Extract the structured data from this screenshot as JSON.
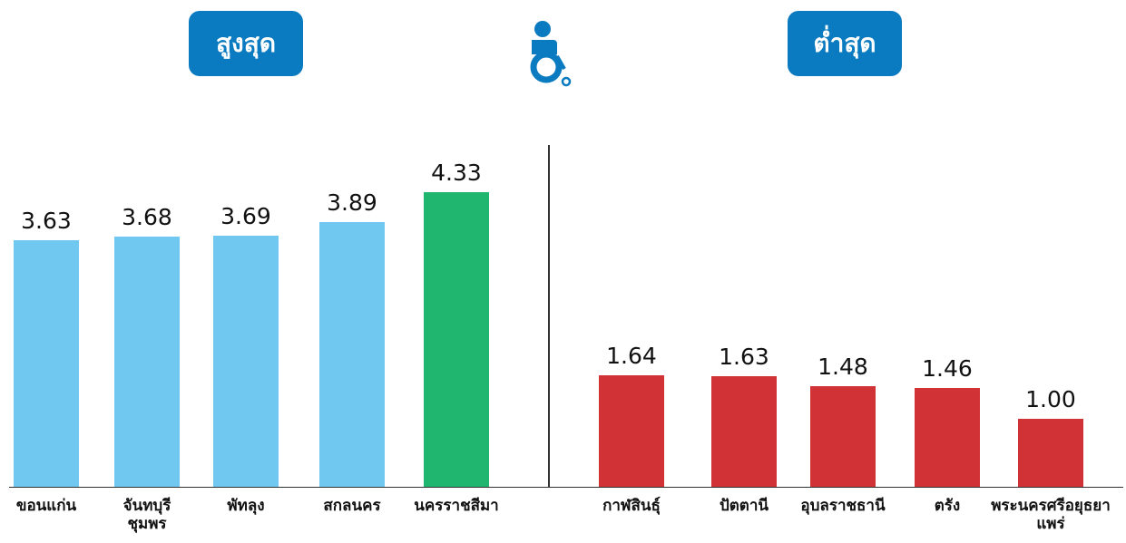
{
  "chart_data": [
    {
      "type": "bar",
      "title": "สูงสุด",
      "categories": [
        "ขอนแก่น",
        "จันทบุรี\nชุมพร",
        "พัทลุง",
        "สกลนคร",
        "นครราชสีมา"
      ],
      "values": [
        3.63,
        3.68,
        3.69,
        3.89,
        4.33
      ],
      "value_labels": [
        "3.63",
        "3.68",
        "3.69",
        "3.89",
        "4.33"
      ],
      "colors": [
        "#70c8f0",
        "#70c8f0",
        "#70c8f0",
        "#70c8f0",
        "#20b670"
      ]
    },
    {
      "type": "bar",
      "title": "ต่ำสุด",
      "categories": [
        "กาฬสินธุ์",
        "ปัตตานี",
        "อุบลราชธานี",
        "ตรัง",
        "พระนครศรีอยุธยา\nแพร่"
      ],
      "values": [
        1.64,
        1.63,
        1.48,
        1.46,
        1.0
      ],
      "value_labels": [
        "1.64",
        "1.63",
        "1.48",
        "1.46",
        "1.00"
      ],
      "colors": [
        "#d03236",
        "#d03236",
        "#d03236",
        "#d03236",
        "#d03236"
      ]
    }
  ]
}
